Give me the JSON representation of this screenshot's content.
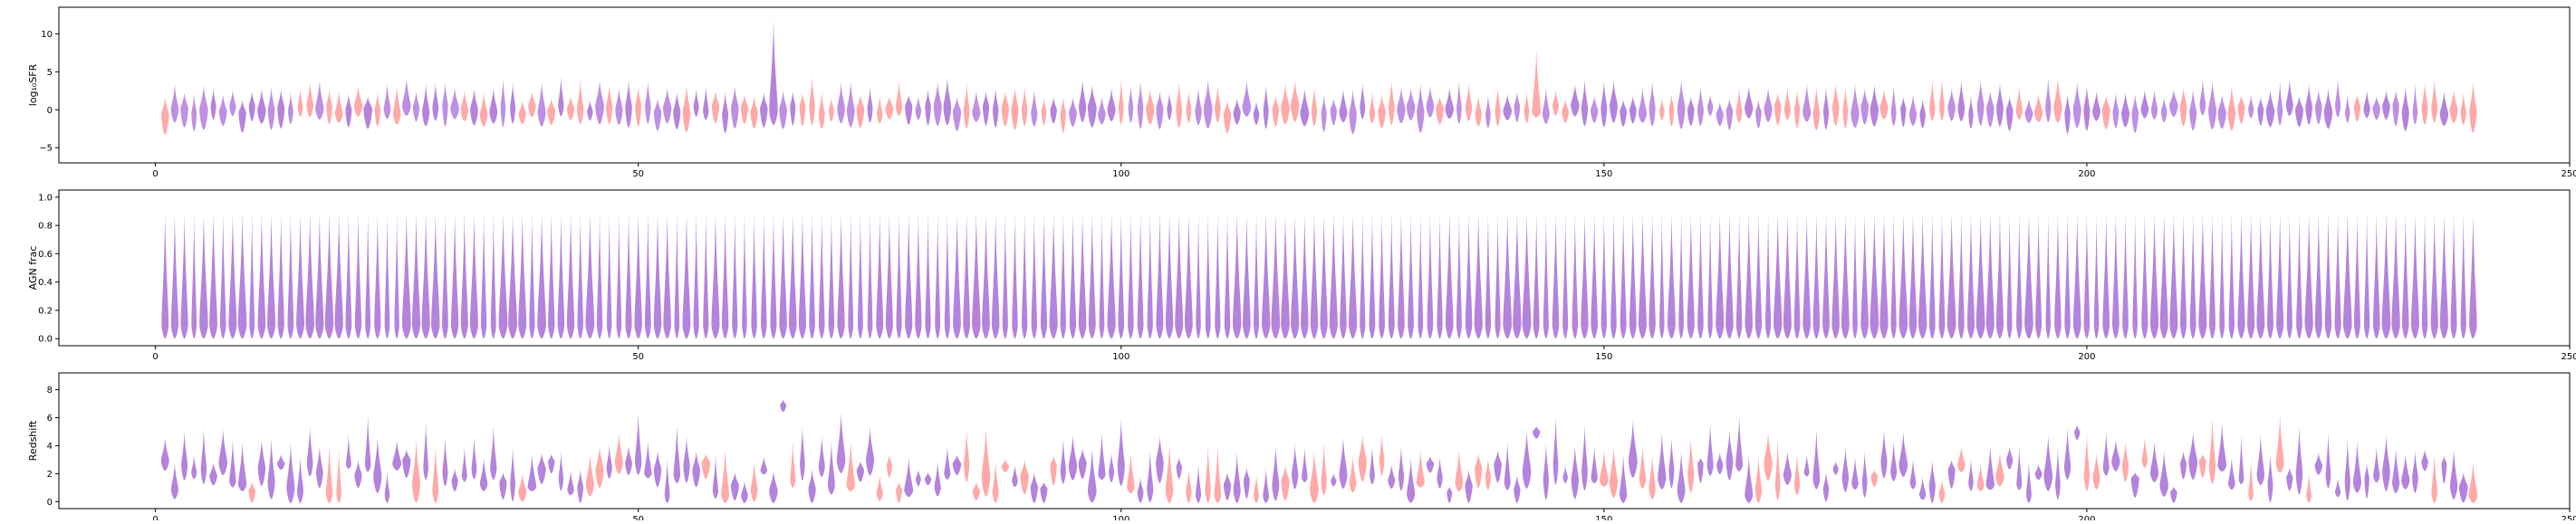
{
  "chart_data": [
    {
      "type": "violin",
      "ylabel": "log10SFR",
      "x_range": [
        -10,
        250
      ],
      "ylim": [
        -7,
        13.5
      ],
      "xticks": [
        0,
        50,
        100,
        150,
        200,
        250
      ],
      "yticks": [
        -5,
        0,
        5,
        10
      ],
      "n_categories": 240,
      "category_start": 1,
      "series": [
        {
          "name": "",
          "color": "#ff7f7f",
          "alpha": 0.55
        },
        {
          "name": "",
          "color": "#8080ff",
          "alpha": 0.55
        }
      ],
      "notes": "Per-galaxy violins centered near 0 spanning roughly -2.5 to +3; outlier at x≈64 reaching ~12 and x≈143 reaching ~8."
    },
    {
      "type": "violin",
      "ylabel": "AGN frac",
      "x_range": [
        -10,
        250
      ],
      "ylim": [
        -0.05,
        1.05
      ],
      "xticks": [
        0,
        50,
        100,
        150,
        200,
        250
      ],
      "yticks": [
        0.0,
        0.2,
        0.4,
        0.6,
        0.8,
        1.0
      ],
      "n_categories": 240,
      "category_start": 1,
      "notes": "Every violin spans about 0 to 0.9 with most density below 0.2."
    },
    {
      "type": "violin",
      "ylabel": "Redshift",
      "x_range": [
        -10,
        250
      ],
      "ylim": [
        -0.5,
        9.2
      ],
      "xticks": [
        0,
        50,
        100,
        150,
        200,
        250
      ],
      "yticks": [
        0,
        2,
        4,
        6,
        8
      ],
      "n_categories": 240,
      "category_start": 1,
      "notes": "Violins mostly between 0 and 6.5; narrow high-z violin at x≈65 near 7, x≈143 near 5, x≈199 near 5."
    }
  ],
  "tick_labels_x": [
    "0",
    "50",
    "100",
    "150",
    "200",
    "250"
  ],
  "panel1": {
    "ylabel": "log₁₀SFR",
    "yticklabels": [
      "−5",
      "0",
      "5",
      "10"
    ]
  },
  "panel2": {
    "ylabel": "AGN frac",
    "yticklabels": [
      "0.0",
      "0.2",
      "0.4",
      "0.6",
      "0.8",
      "1.0"
    ]
  },
  "panel3": {
    "ylabel": "Redshift",
    "yticklabels": [
      "0",
      "2",
      "4",
      "6",
      "8"
    ]
  }
}
